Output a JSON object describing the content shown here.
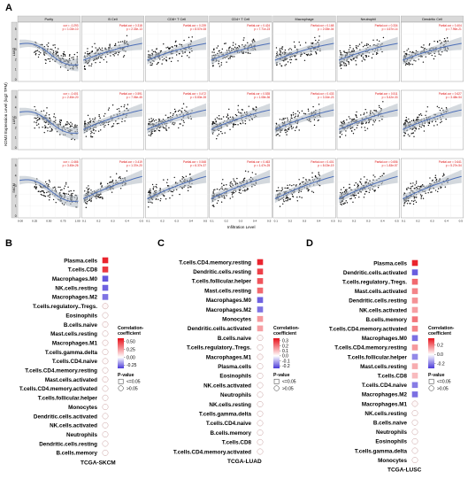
{
  "figure": {
    "panel_labels": [
      "A",
      "B",
      "C",
      "D"
    ],
    "colors": {
      "positive": "#e8101a",
      "negative": "#4b3bd8",
      "neutral": "#ffffff",
      "fit_line": "#4d6fb8",
      "band": "#b8bfc8",
      "strip": "#d9d9d9",
      "point": "#111111"
    }
  },
  "chart_data": [
    {
      "type": "scatter",
      "panel": "A",
      "columns": [
        "Purity",
        "B Cell",
        "CD8+ T Cell",
        "CD4+ T Cell",
        "Macrophage",
        "Neutrophil",
        "Dendritic Cell"
      ],
      "rows": [
        "LUAD",
        "LUSC",
        "SKCM"
      ],
      "ylabel": "KDM3 Expression Level (log2 TPM)",
      "xlabel": "Infiltration Level",
      "y_ticks": [
        "0",
        "1",
        "2",
        "3",
        "4",
        "5"
      ],
      "x_ticks_purity": [
        "0.00",
        "0.25",
        "0.50",
        "0.75",
        "1.00"
      ],
      "x_ticks_other": [
        "0.1",
        "0.2",
        "0.3",
        "0.4",
        "0.5"
      ],
      "annotations": [
        [
          "cor = -0.293\np = 1.03e-10",
          "Partial.cor = 0.318\np = 2.33e-13",
          "Partial.cor = 0.239\np = 8.57e-08",
          "Partial.cor = 0.424\np = 7.71e-23",
          "Partial.cor = 0.168\np = 2.08e-04",
          "Partial.cor = 0.334\np = 4.67e-14",
          "Partial.cor = 0.404\np = 7.96e-21"
        ],
        [
          "cor = -0.401\np = 2.45e-20",
          "Partial.cor = 0.591\np = 7.06e-45",
          "Partial.cor = 0.472\np = 5.83e-28",
          "Partial.cor = 0.535\np = 1.08e-36",
          "Partial.cor = 0.433\np = 3.34e-23",
          "Partial.cor = 0.511\np = 5.42e-33",
          "Partial.cor = 0.627\np = 3.48e-54"
        ],
        [
          "cor = -0.466\np = 3.45e-26",
          "Partial.cor = 0.419\np = 1.37e-20",
          "Partial.cor = 0.548\np = 6.37e-37",
          "Partial.cor = 0.463\np = 1.47e-25",
          "Partial.cor = 0.401\np = 8.03e-19",
          "Partial.cor = 0.656\np = 1.83e-57",
          "Partial.cor = 0.641\np = 5.27e-54"
        ]
      ]
    },
    {
      "type": "dot",
      "panel": "B",
      "xlabel": "TCGA-SKCM",
      "legend_title": "Correlation-\ncoefficient",
      "legend_ticks": [
        "0.50",
        "0.25",
        "0.00",
        "-0.25"
      ],
      "legend_range": [
        -0.35,
        0.6
      ],
      "pvalue_title": "P-value",
      "pvalue_labels": [
        "<=0.05",
        ">0.05"
      ],
      "categories": [
        "Plasma.cells",
        "T.cells.CD8",
        "Macrophages.M0",
        "NK.cells.resting",
        "Macrophages.M2",
        "T.cells.regulatory..Tregs.",
        "Eosinophils",
        "B.cells.naive",
        "Mast.cells.resting",
        "Macrophages.M1",
        "T.cells.gamma.delta",
        "T.cells.CD4.naive",
        "T.cells.CD4.memory.resting",
        "Mast.cells.activated",
        "T.cells.CD4.memory.activated",
        "T.cells.follicular.helper",
        "Monocytes",
        "Dendritic.cells.activated",
        "NK.cells.activated",
        "Neutrophils",
        "Dendritic.cells.resting",
        "B.cells.memory"
      ],
      "values": [
        0.55,
        0.5,
        -0.3,
        -0.28,
        -0.25,
        0.02,
        0.0,
        0.01,
        0.0,
        0.01,
        0.0,
        0.01,
        0.0,
        0.01,
        0.0,
        0.0,
        0.0,
        0.0,
        0.0,
        0.0,
        0.0,
        0.0
      ],
      "significant": [
        true,
        true,
        true,
        true,
        true,
        false,
        false,
        false,
        false,
        false,
        false,
        false,
        false,
        false,
        false,
        false,
        false,
        false,
        false,
        false,
        false,
        false
      ]
    },
    {
      "type": "dot",
      "panel": "C",
      "xlabel": "TCGA-LUAD",
      "legend_title": "Correlation-\ncoefficient",
      "legend_ticks": [
        "0.3",
        "0.2",
        "0.1",
        "0.0",
        "-0.1",
        "-0.2"
      ],
      "legend_range": [
        -0.25,
        0.35
      ],
      "pvalue_title": "P-value",
      "pvalue_labels": [
        "<=0.05",
        ">0.05"
      ],
      "categories": [
        "T.cells.CD4.memory.resting",
        "Dendritic.cells.resting",
        "T.cells.follicular.helper",
        "Mast.cells.resting",
        "Macrophages.M0",
        "Macrophages.M2",
        "Monocytes",
        "Dendritic.cells.activated",
        "B.cells.naive",
        "T.cells.regulatory..Tregs.",
        "Macrophages.M1",
        "Plasma.cells",
        "Eosinophils",
        "NK.cells.activated",
        "Neutrophils",
        "NK.cells.resting",
        "T.cells.gamma.delta",
        "T.cells.CD4.naive",
        "B.cells.memory",
        "T.cells.CD8",
        "T.cells.CD4.memory.activated"
      ],
      "values": [
        0.32,
        0.28,
        0.25,
        0.22,
        -0.2,
        -0.18,
        0.15,
        0.14,
        0.01,
        0.0,
        0.01,
        0.0,
        0.0,
        0.0,
        0.0,
        0.0,
        0.0,
        0.0,
        0.0,
        0.0,
        0.0
      ],
      "significant": [
        true,
        true,
        true,
        true,
        true,
        true,
        true,
        true,
        false,
        false,
        false,
        false,
        false,
        false,
        false,
        false,
        false,
        false,
        false,
        false,
        false
      ]
    },
    {
      "type": "dot",
      "panel": "D",
      "xlabel": "TCGA-LUSC",
      "legend_title": "Correlation-\ncoefficient",
      "legend_ticks": [
        "0.2",
        "0.0",
        "-0.2"
      ],
      "legend_range": [
        -0.3,
        0.35
      ],
      "pvalue_title": "P-value",
      "pvalue_labels": [
        "<=0.05",
        ">0.05"
      ],
      "categories": [
        "Plasma.cells",
        "Dendritic.cells.activated",
        "T.cells.regulatory..Tregs.",
        "Mast.cells.activated",
        "Dendritic.cells.resting",
        "NK.cells.activated",
        "B.cells.memory",
        "T.cells.CD4.memory.activated",
        "Macrophages.M0",
        "T.cells.CD4.memory.resting",
        "T.cells.follicular.helper",
        "Mast.cells.resting",
        "T.cells.CD8",
        "T.cells.CD4.naive",
        "Macrophages.M2",
        "Macrophages.M1",
        "NK.cells.resting",
        "B.cells.naive",
        "Neutrophils",
        "Eosinophils",
        "T.cells.gamma.delta",
        "Monocytes"
      ],
      "values": [
        0.32,
        -0.25,
        0.22,
        0.18,
        0.16,
        0.14,
        0.2,
        0.18,
        -0.22,
        0.15,
        -0.18,
        0.12,
        0.1,
        -0.2,
        -0.22,
        0.01,
        0.0,
        0.0,
        0.0,
        0.0,
        0.0,
        0.0
      ],
      "significant": [
        true,
        true,
        true,
        true,
        true,
        true,
        true,
        true,
        true,
        true,
        true,
        true,
        true,
        true,
        true,
        false,
        false,
        false,
        false,
        false,
        false,
        false
      ]
    }
  ]
}
